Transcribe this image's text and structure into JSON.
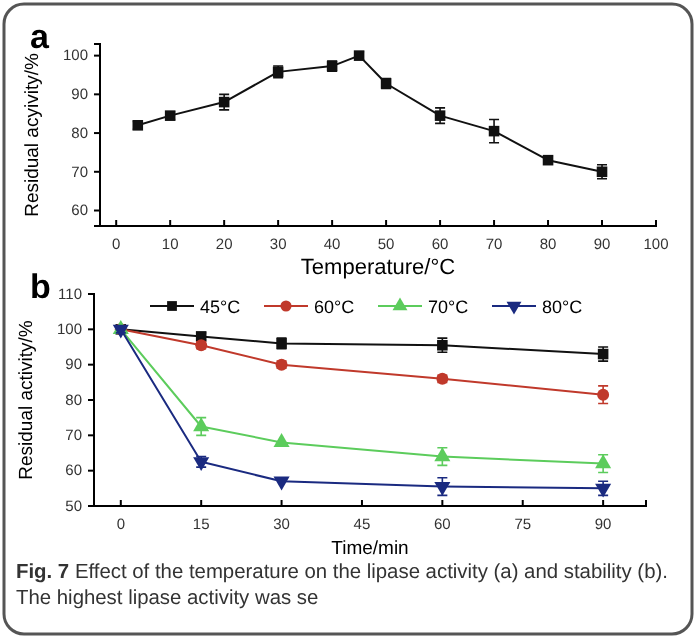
{
  "chart_data": [
    {
      "type": "line",
      "title": "a",
      "xlabel": "Temperature/°C",
      "ylabel": "Residual acyivity/%",
      "x": [
        4,
        10,
        20,
        30,
        40,
        45,
        50,
        60,
        70,
        80,
        90
      ],
      "xlim": [
        -3,
        100
      ],
      "xticks": [
        0,
        10,
        20,
        30,
        40,
        50,
        60,
        70,
        80,
        90,
        100
      ],
      "ylim": [
        56,
        103
      ],
      "yticks": [
        60,
        70,
        80,
        90,
        100
      ],
      "grid": false,
      "legend": false,
      "marker": "square",
      "line_style": "solid",
      "series": [
        {
          "color": "#111111",
          "values": [
            82,
            84.5,
            88,
            95.8,
            97.3,
            100,
            92.8,
            84.5,
            80.5,
            73,
            70
          ],
          "errors": [
            1,
            1,
            2,
            1.5,
            1.3,
            1,
            1.3,
            2,
            3,
            1,
            1.8
          ]
        }
      ]
    },
    {
      "type": "line",
      "title": "b",
      "xlabel": "Time/min",
      "ylabel": "Residual activity/%",
      "x": [
        0,
        15,
        30,
        60,
        90
      ],
      "xlim": [
        -5,
        98
      ],
      "xticks": [
        0,
        15,
        30,
        45,
        60,
        75,
        90
      ],
      "ylim": [
        50,
        110
      ],
      "yticks": [
        50,
        60,
        70,
        80,
        90,
        100,
        110
      ],
      "grid": false,
      "legend": "top",
      "line_style": "solid",
      "annotations": [
        "Fig. 7 Effect of the temperature on the lipase activity (a) and stability (b). The highest lipase activity was se"
      ],
      "series": [
        {
          "name": "45°C",
          "color": "#111111",
          "marker": "square",
          "values": [
            100,
            98,
            96,
            95.5,
            93
          ],
          "errors": [
            1,
            1,
            1.5,
            2,
            2
          ]
        },
        {
          "name": "60°C",
          "color": "#c0392b",
          "marker": "circle",
          "values": [
            100,
            95.5,
            90,
            86,
            81.5
          ],
          "errors": [
            1,
            1,
            1,
            1,
            2.5
          ]
        },
        {
          "name": "70°C",
          "color": "#5ccc5c",
          "marker": "triangle",
          "values": [
            100,
            72.5,
            68,
            64,
            62
          ],
          "errors": [
            1,
            2.5,
            null,
            2.5,
            2.5
          ]
        },
        {
          "name": "80°C",
          "color": "#1a2a80",
          "marker": "triangle",
          "values": [
            100,
            62.5,
            57,
            55.5,
            55
          ],
          "errors": [
            1,
            1.5,
            null,
            2.5,
            2
          ]
        }
      ]
    }
  ]
}
